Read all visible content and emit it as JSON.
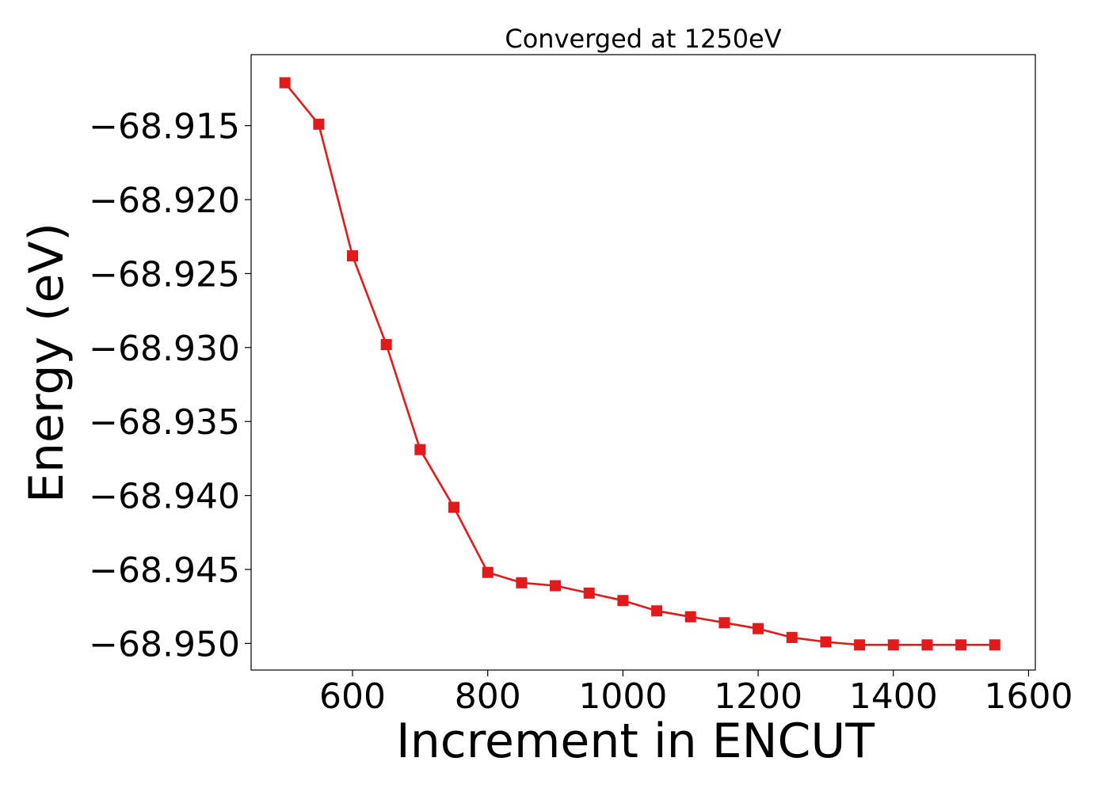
{
  "chart_data": {
    "type": "line",
    "title": "Converged at 1250eV",
    "xlabel": "Increment in ENCUT",
    "ylabel": "Energy (eV)",
    "xlim": [
      450,
      1610
    ],
    "ylim": [
      -68.9518,
      -68.9102
    ],
    "xticks": [
      600,
      800,
      1000,
      1200,
      1400,
      1600
    ],
    "xtick_labels": [
      "600",
      "800",
      "1000",
      "1200",
      "1400",
      "1600"
    ],
    "yticks": [
      -68.915,
      -68.92,
      -68.925,
      -68.93,
      -68.935,
      -68.94,
      -68.945,
      -68.95
    ],
    "ytick_labels": [
      "−68.915",
      "−68.920",
      "−68.925",
      "−68.930",
      "−68.935",
      "−68.940",
      "−68.945",
      "−68.950"
    ],
    "grid": false,
    "legend": "none",
    "series": [
      {
        "color": "#e31a1c",
        "marker": "square",
        "x": [
          500,
          550,
          600,
          650,
          700,
          750,
          800,
          850,
          900,
          950,
          1000,
          1050,
          1100,
          1150,
          1200,
          1250,
          1300,
          1350,
          1400,
          1450,
          1500,
          1550
        ],
        "y": [
          -68.9121,
          -68.9149,
          -68.9238,
          -68.9298,
          -68.9369,
          -68.9408,
          -68.9452,
          -68.9459,
          -68.9461,
          -68.9466,
          -68.9471,
          -68.9478,
          -68.9482,
          -68.9486,
          -68.949,
          -68.9496,
          -68.9499,
          -68.9501,
          -68.9501,
          -68.9501,
          -68.9501,
          -68.9501
        ]
      }
    ]
  }
}
